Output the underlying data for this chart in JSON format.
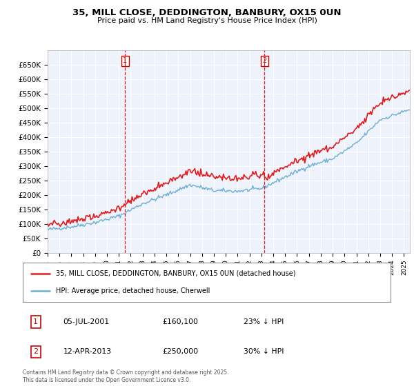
{
  "title_line1": "35, MILL CLOSE, DEDDINGTON, BANBURY, OX15 0UN",
  "title_line2": "Price paid vs. HM Land Registry's House Price Index (HPI)",
  "ylim": [
    0,
    700000
  ],
  "yticks": [
    0,
    50000,
    100000,
    150000,
    200000,
    250000,
    300000,
    350000,
    400000,
    450000,
    500000,
    550000,
    600000,
    650000
  ],
  "ytick_labels": [
    "£0",
    "£50K",
    "£100K",
    "£150K",
    "£200K",
    "£250K",
    "£300K",
    "£350K",
    "£400K",
    "£450K",
    "£500K",
    "£550K",
    "£600K",
    "£650K"
  ],
  "background_color": "#ffffff",
  "plot_bg_color": "#eef2fb",
  "grid_color": "#ffffff",
  "hpi_color": "#6baed6",
  "price_color": "#e31a1c",
  "marker1_date_x": 2001.51,
  "marker1_label": "1",
  "marker1_price": 160100,
  "marker2_date_x": 2013.27,
  "marker2_label": "2",
  "marker2_price": 250000,
  "legend_line1": "35, MILL CLOSE, DEDDINGTON, BANBURY, OX15 0UN (detached house)",
  "legend_line2": "HPI: Average price, detached house, Cherwell",
  "ann1_date": "05-JUL-2001",
  "ann1_price": "£160,100",
  "ann1_pct": "23% ↓ HPI",
  "ann2_date": "12-APR-2013",
  "ann2_price": "£250,000",
  "ann2_pct": "30% ↓ HPI",
  "footnote": "Contains HM Land Registry data © Crown copyright and database right 2025.\nThis data is licensed under the Open Government Licence v3.0.",
  "xtick_years": [
    1995,
    1996,
    1997,
    1998,
    1999,
    2000,
    2001,
    2002,
    2003,
    2004,
    2005,
    2006,
    2007,
    2008,
    2009,
    2010,
    2011,
    2012,
    2013,
    2014,
    2015,
    2016,
    2017,
    2018,
    2019,
    2020,
    2021,
    2022,
    2023,
    2024,
    2025
  ]
}
